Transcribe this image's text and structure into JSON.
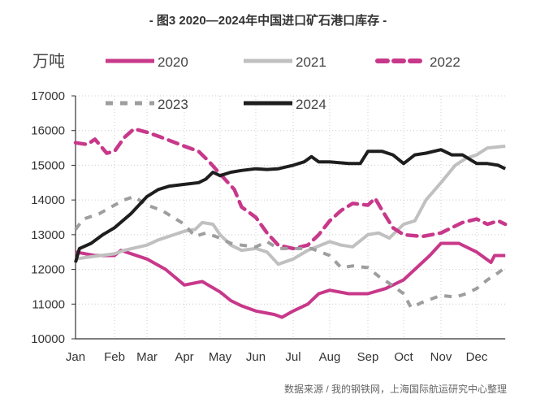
{
  "title": "- 图3 2020—2024年中国进口矿石港口库存 -",
  "source": "数据来源 / 我的钢铁网，上海国际航运研究中心整理",
  "chart_data": {
    "type": "line",
    "title": "图3 2020—2024年中国进口矿石港口库存",
    "ylabel": "万吨",
    "xlabel": "",
    "ylim": [
      10000,
      17000
    ],
    "yticks": [
      10000,
      11000,
      12000,
      13000,
      14000,
      15000,
      16000,
      17000
    ],
    "xlim": [
      1,
      12.8
    ],
    "xtick_labels": [
      "Jan",
      "Feb",
      "Mar",
      "Apr",
      "May",
      "Jun",
      "Jul",
      "Aug",
      "Sep",
      "Oct",
      "Nov",
      "Dec"
    ],
    "grid": true,
    "legend_placement": "top",
    "series": [
      {
        "name": "2020",
        "color": "#c8388a",
        "style": "solid",
        "points": [
          [
            1,
            12500
          ],
          [
            1.5,
            12400
          ],
          [
            2,
            12400
          ],
          [
            2.2,
            12550
          ],
          [
            3,
            12300
          ],
          [
            3.5,
            12000
          ],
          [
            4,
            11550
          ],
          [
            4.5,
            11650
          ],
          [
            5,
            11350
          ],
          [
            5.3,
            11100
          ],
          [
            5.6,
            10950
          ],
          [
            6,
            10800
          ],
          [
            6.5,
            10700
          ],
          [
            6.7,
            10620
          ],
          [
            7,
            10800
          ],
          [
            7.4,
            11000
          ],
          [
            7.7,
            11300
          ],
          [
            8,
            11400
          ],
          [
            8.5,
            11300
          ],
          [
            9,
            11300
          ],
          [
            9.5,
            11450
          ],
          [
            10,
            11700
          ],
          [
            10.3,
            12000
          ],
          [
            10.7,
            12400
          ],
          [
            11,
            12750
          ],
          [
            11.5,
            12750
          ],
          [
            12,
            12500
          ],
          [
            12.4,
            12200
          ],
          [
            12.5,
            12400
          ],
          [
            12.8,
            12400
          ]
        ]
      },
      {
        "name": "2021",
        "color": "#c0c0c0",
        "style": "solid",
        "points": [
          [
            1,
            12300
          ],
          [
            1.3,
            12350
          ],
          [
            2,
            12450
          ],
          [
            2.3,
            12550
          ],
          [
            3,
            12700
          ],
          [
            3.3,
            12850
          ],
          [
            4,
            13100
          ],
          [
            4.3,
            13150
          ],
          [
            4.5,
            13350
          ],
          [
            4.8,
            13300
          ],
          [
            5,
            13000
          ],
          [
            5.3,
            12700
          ],
          [
            5.6,
            12550
          ],
          [
            6,
            12600
          ],
          [
            6.3,
            12500
          ],
          [
            6.6,
            12150
          ],
          [
            7,
            12300
          ],
          [
            7.4,
            12550
          ],
          [
            8,
            12800
          ],
          [
            8.3,
            12700
          ],
          [
            8.6,
            12650
          ],
          [
            9,
            13000
          ],
          [
            9.3,
            13050
          ],
          [
            9.6,
            12900
          ],
          [
            10,
            13300
          ],
          [
            10.3,
            13400
          ],
          [
            10.6,
            14000
          ],
          [
            11,
            14500
          ],
          [
            11.4,
            15000
          ],
          [
            11.7,
            15200
          ],
          [
            12,
            15300
          ],
          [
            12.3,
            15500
          ],
          [
            12.8,
            15550
          ]
        ]
      },
      {
        "name": "2022",
        "color": "#c8388a",
        "style": "dashed",
        "points": [
          [
            1,
            15650
          ],
          [
            1.3,
            15600
          ],
          [
            1.5,
            15750
          ],
          [
            1.8,
            15350
          ],
          [
            2,
            15400
          ],
          [
            2.3,
            15800
          ],
          [
            2.6,
            16050
          ],
          [
            3,
            15950
          ],
          [
            3.4,
            15800
          ],
          [
            4,
            15550
          ],
          [
            4.4,
            15400
          ],
          [
            4.7,
            15100
          ],
          [
            5,
            14750
          ],
          [
            5.4,
            14300
          ],
          [
            5.6,
            13800
          ],
          [
            6,
            13500
          ],
          [
            6.3,
            13050
          ],
          [
            6.6,
            12700
          ],
          [
            7,
            12600
          ],
          [
            7.4,
            12700
          ],
          [
            7.7,
            13000
          ],
          [
            8,
            13400
          ],
          [
            8.3,
            13700
          ],
          [
            8.6,
            13900
          ],
          [
            9,
            13850
          ],
          [
            9.2,
            14050
          ],
          [
            9.4,
            13700
          ],
          [
            9.7,
            13200
          ],
          [
            10,
            13000
          ],
          [
            10.5,
            12950
          ],
          [
            11,
            13050
          ],
          [
            11.3,
            13200
          ],
          [
            11.6,
            13350
          ],
          [
            12,
            13450
          ],
          [
            12.3,
            13300
          ],
          [
            12.6,
            13400
          ],
          [
            12.8,
            13300
          ]
        ]
      },
      {
        "name": "2023",
        "color": "#9e9e9e",
        "style": "dashed",
        "points": [
          [
            1,
            13150
          ],
          [
            1.2,
            13450
          ],
          [
            1.6,
            13600
          ],
          [
            2,
            13850
          ],
          [
            2.3,
            14000
          ],
          [
            2.6,
            14100
          ],
          [
            3,
            13850
          ],
          [
            3.4,
            13700
          ],
          [
            4,
            13300
          ],
          [
            4.3,
            12950
          ],
          [
            4.6,
            13050
          ],
          [
            5,
            12900
          ],
          [
            5.3,
            12750
          ],
          [
            5.6,
            12700
          ],
          [
            6,
            12650
          ],
          [
            6.3,
            12800
          ],
          [
            6.6,
            12600
          ],
          [
            7,
            12600
          ],
          [
            7.5,
            12600
          ],
          [
            8,
            12400
          ],
          [
            8.3,
            12050
          ],
          [
            8.6,
            12100
          ],
          [
            9,
            12050
          ],
          [
            9.3,
            11800
          ],
          [
            9.6,
            11600
          ],
          [
            10,
            11300
          ],
          [
            10.2,
            10900
          ],
          [
            10.5,
            11050
          ],
          [
            11,
            11250
          ],
          [
            11.4,
            11200
          ],
          [
            11.7,
            11300
          ],
          [
            12,
            11450
          ],
          [
            12.3,
            11700
          ],
          [
            12.6,
            11900
          ],
          [
            12.8,
            12050
          ]
        ]
      },
      {
        "name": "2024",
        "color": "#1e1e1e",
        "style": "solid",
        "points": [
          [
            1,
            12200
          ],
          [
            1.1,
            12600
          ],
          [
            1.4,
            12750
          ],
          [
            1.7,
            13000
          ],
          [
            2,
            13200
          ],
          [
            2.5,
            13600
          ],
          [
            3,
            14100
          ],
          [
            3.3,
            14300
          ],
          [
            3.6,
            14400
          ],
          [
            4,
            14450
          ],
          [
            4.4,
            14500
          ],
          [
            4.6,
            14600
          ],
          [
            4.8,
            14800
          ],
          [
            5,
            14700
          ],
          [
            5.3,
            14800
          ],
          [
            5.6,
            14850
          ],
          [
            6,
            14900
          ],
          [
            6.3,
            14880
          ],
          [
            6.6,
            14900
          ],
          [
            7,
            15000
          ],
          [
            7.3,
            15100
          ],
          [
            7.5,
            15250
          ],
          [
            7.7,
            15100
          ],
          [
            8,
            15100
          ],
          [
            8.5,
            15050
          ],
          [
            8.8,
            15050
          ],
          [
            9,
            15400
          ],
          [
            9.4,
            15400
          ],
          [
            9.7,
            15300
          ],
          [
            10,
            15050
          ],
          [
            10.3,
            15300
          ],
          [
            10.6,
            15350
          ],
          [
            11,
            15450
          ],
          [
            11.3,
            15300
          ],
          [
            11.6,
            15300
          ],
          [
            12,
            15050
          ],
          [
            12.3,
            15050
          ],
          [
            12.6,
            15000
          ],
          [
            12.8,
            14900
          ]
        ]
      }
    ]
  }
}
